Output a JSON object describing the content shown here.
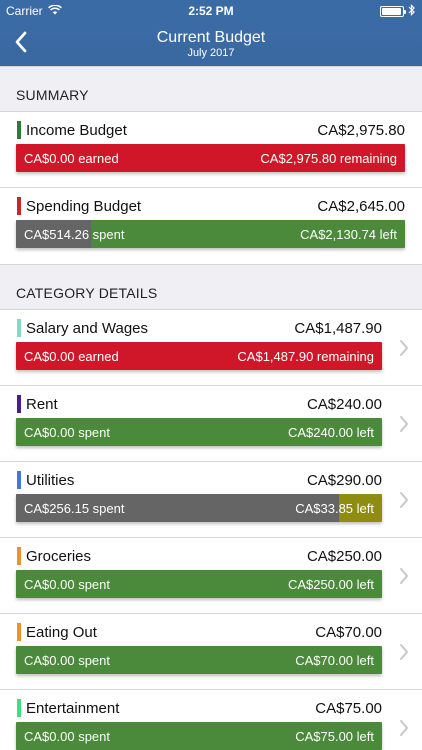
{
  "status_bar": {
    "carrier": "Carrier",
    "time": "2:52 PM",
    "battery_level": 0.95
  },
  "nav": {
    "title": "Current Budget",
    "subtitle": "July 2017"
  },
  "summary": {
    "header": "SUMMARY",
    "items": [
      {
        "name": "Income Budget",
        "amount": "CA$2,975.80",
        "left_text": "CA$0.00 earned",
        "right_text": "CA$2,975.80 remaining",
        "swatch": "#2e7d32",
        "bar_color": "#d0172a",
        "fill_color": "#656565",
        "fill": 0
      },
      {
        "name": "Spending Budget",
        "amount": "CA$2,645.00",
        "left_text": "CA$514.26 spent",
        "right_text": "CA$2,130.74 left",
        "swatch": "#c62828",
        "bar_color": "#4a8a3a",
        "fill_color": "#656565",
        "fill": 0.194
      }
    ]
  },
  "details": {
    "header": "CATEGORY DETAILS",
    "items": [
      {
        "name": "Salary and Wages",
        "amount": "CA$1,487.90",
        "left_text": "CA$0.00 earned",
        "right_text": "CA$1,487.90 remaining",
        "swatch": "#7fdac8",
        "bar_color": "#d0172a",
        "fill_color": "#656565",
        "fill": 0
      },
      {
        "name": "Rent",
        "amount": "CA$240.00",
        "left_text": "CA$0.00 spent",
        "right_text": "CA$240.00 left",
        "swatch": "#4b1d91",
        "bar_color": "#4a8a3a",
        "fill_color": "#656565",
        "fill": 0
      },
      {
        "name": "Utilities",
        "amount": "CA$290.00",
        "left_text": "CA$256.15 spent",
        "right_text": "CA$33.85 left",
        "swatch": "#3f7ad6",
        "bar_color": "#8e8d10",
        "fill_color": "#656565",
        "fill": 0.883
      },
      {
        "name": "Groceries",
        "amount": "CA$250.00",
        "left_text": "CA$0.00 spent",
        "right_text": "CA$250.00 left",
        "swatch": "#f0902a",
        "bar_color": "#4a8a3a",
        "fill_color": "#656565",
        "fill": 0
      },
      {
        "name": "Eating Out",
        "amount": "CA$70.00",
        "left_text": "CA$0.00 spent",
        "right_text": "CA$70.00 left",
        "swatch": "#f0902a",
        "bar_color": "#4a8a3a",
        "fill_color": "#656565",
        "fill": 0
      },
      {
        "name": "Entertainment",
        "amount": "CA$75.00",
        "left_text": "CA$0.00 spent",
        "right_text": "CA$75.00 left",
        "swatch": "#3fe07a",
        "bar_color": "#4a8a3a",
        "fill_color": "#656565",
        "fill": 0
      }
    ]
  },
  "icons": {
    "back": "chevron-left-icon",
    "disclosure": "chevron-right-icon",
    "wifi": "wifi-icon",
    "bluetooth": "bluetooth-icon",
    "battery": "battery-icon"
  }
}
